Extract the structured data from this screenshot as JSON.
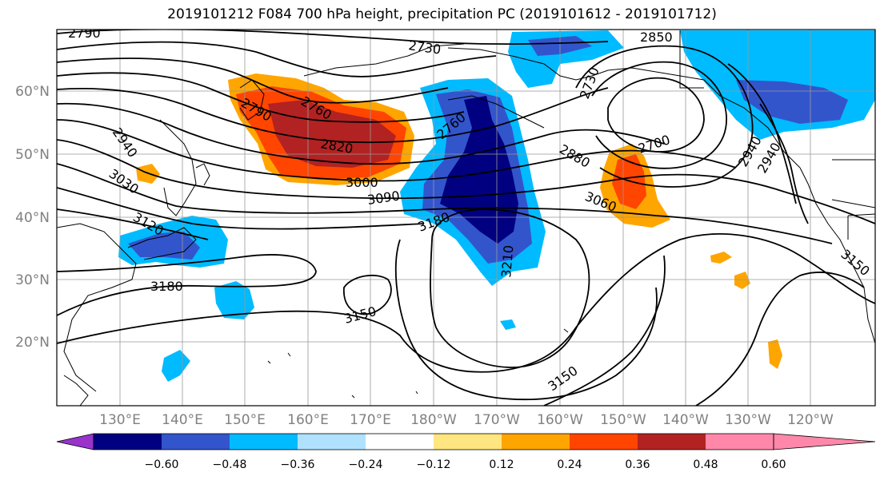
{
  "title": "2019101212 F084 700 hPa height, precipitation PC (2019101612 - 2019101712)",
  "longitude_labels": [
    "130°E",
    "140°E",
    "150°E",
    "160°E",
    "170°E",
    "180°W",
    "170°W",
    "160°W",
    "150°W",
    "140°W",
    "130°W",
    "120°W"
  ],
  "latitude_labels": [
    "20°N",
    "30°N",
    "40°N",
    "50°N",
    "60°N"
  ],
  "contour_labels": [
    "2790",
    "2730",
    "2850",
    "2790",
    "2760",
    "2730",
    "2820",
    "2700",
    "2940",
    "2760",
    "2880",
    "2940",
    "2940",
    "3000",
    "3090",
    "3060",
    "3030",
    "3120",
    "3180",
    "3210",
    "3150",
    "3180",
    "3150",
    "3150"
  ],
  "colorbar": {
    "ticks": [
      "−0.60",
      "−0.48",
      "−0.36",
      "−0.24",
      "−0.12",
      "0.12",
      "0.24",
      "0.36",
      "0.48",
      "0.60"
    ],
    "colors": [
      "#9933cc",
      "#000080",
      "#3355cc",
      "#00bbff",
      "#b0e2ff",
      "#ffffff",
      "#ffe680",
      "#ffa500",
      "#ff4500",
      "#b22222",
      "#ff88aa"
    ]
  },
  "colors": {
    "neg_strong": "#000080",
    "neg_mid": "#3355cc",
    "neg_light": "#00bbff",
    "pos_light": "#ffa500",
    "pos_mid": "#ff4500",
    "pos_strong": "#b22222"
  }
}
